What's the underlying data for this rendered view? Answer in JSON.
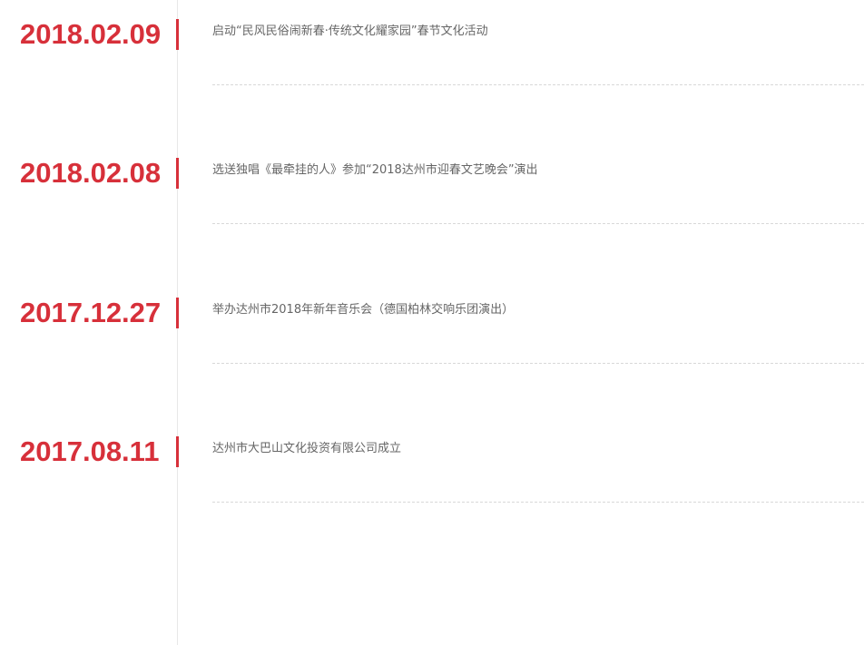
{
  "accent_color": "#d7303a",
  "timeline": [
    {
      "date": "2018.02.09",
      "text": "启动“民风民俗闹新春·传统文化耀家园”春节文化活动"
    },
    {
      "date": "2018.02.08",
      "text": "选送独唱《最牵挂的人》参加“2018达州市迎春文艺晚会”演出"
    },
    {
      "date": "2017.12.27",
      "text": "举办达州市2018年新年音乐会（德国柏林交响乐团演出）"
    },
    {
      "date": "2017.08.11",
      "text": "达州市大巴山文化投资有限公司成立"
    }
  ]
}
